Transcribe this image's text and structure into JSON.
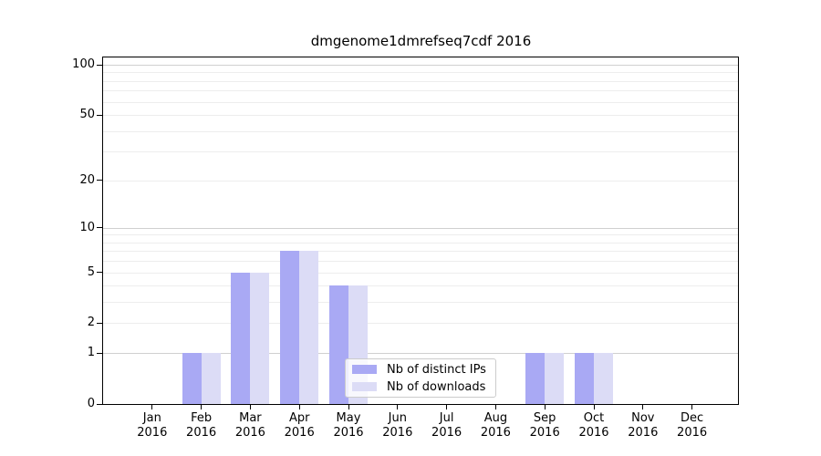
{
  "title": "dmgenome1dmrefseq7cdf 2016",
  "chart_data": {
    "type": "bar",
    "title": "dmgenome1dmrefseq7cdf 2016",
    "categories": [
      "Jan 2016",
      "Feb 2016",
      "Mar 2016",
      "Apr 2016",
      "May 2016",
      "Jun 2016",
      "Jul 2016",
      "Aug 2016",
      "Sep 2016",
      "Oct 2016",
      "Nov 2016",
      "Dec 2016"
    ],
    "series": [
      {
        "name": "Nb of distinct IPs",
        "color": "#a9a9f4",
        "values": [
          0,
          1,
          5,
          7,
          4,
          0,
          0,
          0,
          1,
          1,
          0,
          0
        ]
      },
      {
        "name": "Nb of downloads",
        "color": "#dcdcf6",
        "values": [
          0,
          1,
          5,
          7,
          4,
          0,
          0,
          0,
          1,
          1,
          0,
          0
        ]
      }
    ],
    "xlabel": "",
    "ylabel": "",
    "ylim": [
      0,
      100
    ],
    "y_scale": "log10(value+1)",
    "y_tick_values": [
      0,
      1,
      2,
      5,
      10,
      20,
      50,
      100
    ],
    "y_major_gridlines": [
      1,
      10,
      100
    ],
    "y_minor_gridlines": [
      2,
      3,
      4,
      5,
      6,
      7,
      8,
      9,
      20,
      30,
      40,
      50,
      60,
      70,
      80,
      90
    ],
    "grid": true,
    "legend_position": "inside lower center"
  },
  "colors": {
    "background": "#ffffff",
    "axis": "#000000",
    "grid_major": "#d0d0d0",
    "grid_minor": "#ededed",
    "legend_border": "#cccccc"
  }
}
